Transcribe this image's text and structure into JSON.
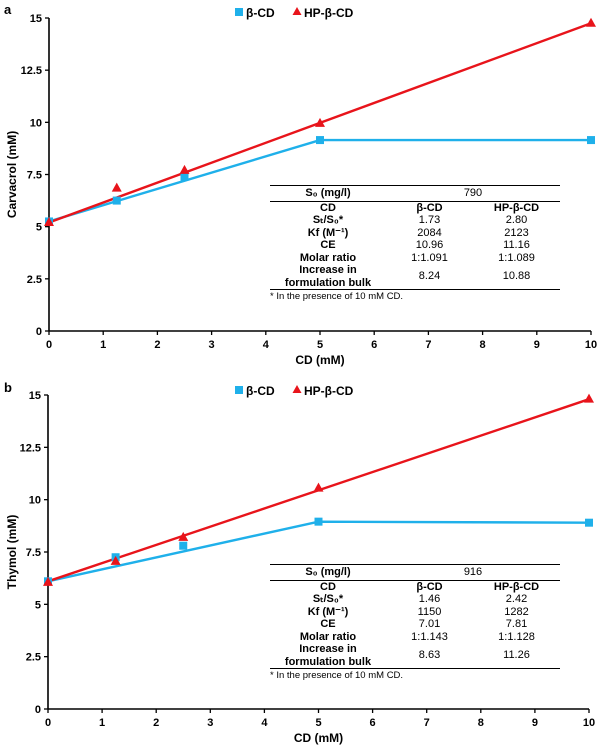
{
  "chart_data": [
    {
      "type": "line",
      "panel": "a",
      "title": "",
      "xlabel": "CD (mM)",
      "ylabel": "Carvacrol (mM)",
      "xlim": [
        0,
        10
      ],
      "ylim": [
        0,
        15
      ],
      "xticks": [
        "0",
        "1",
        "2",
        "3",
        "4",
        "5",
        "6",
        "7",
        "8",
        "9",
        "10"
      ],
      "yticks": [
        "0",
        "2.5",
        "5",
        "7.5",
        "10",
        "12.5",
        "15"
      ],
      "grid": false,
      "legend_position": "top-center",
      "series": [
        {
          "name": "β-CD",
          "marker": "square",
          "color": "#1fb0ea",
          "x": [
            0,
            1.25,
            2.5,
            5,
            10
          ],
          "y": [
            5.25,
            6.25,
            7.4,
            9.15,
            9.15
          ],
          "fit_line": [
            [
              0,
              5.25
            ],
            [
              5,
              9.15
            ],
            [
              10,
              9.15
            ]
          ]
        },
        {
          "name": "HP-β-CD",
          "marker": "triangle",
          "color": "#e8141b",
          "x": [
            0,
            1.25,
            2.5,
            5,
            10
          ],
          "y": [
            5.2,
            6.85,
            7.7,
            9.95,
            14.75
          ],
          "fit_line": [
            [
              0,
              5.2
            ],
            [
              10,
              14.75
            ]
          ]
        }
      ],
      "inset_table": {
        "s0_label": "S₀ (mg/l)",
        "s0_value": "790",
        "header": {
          "label": "CD",
          "c1": "β-CD",
          "c2": "HP-β-CD"
        },
        "rows": [
          {
            "label": "Sₜ/S₀*",
            "c1": "1.73",
            "c2": "2.80"
          },
          {
            "label": "Kf (M⁻¹)",
            "c1": "2084",
            "c2": "2123"
          },
          {
            "label": "CE",
            "c1": "10.96",
            "c2": "11.16"
          },
          {
            "label": "Molar ratio",
            "c1": "1:1.091",
            "c2": "1:1.089"
          },
          {
            "label": "Increase in formulation bulk",
            "c1": "8.24",
            "c2": "10.88"
          }
        ],
        "footnote": "* In the presence of 10 mM CD."
      }
    },
    {
      "type": "line",
      "panel": "b",
      "title": "",
      "xlabel": "CD (mM)",
      "ylabel": "Thymol (mM)",
      "xlim": [
        0,
        10
      ],
      "ylim": [
        0,
        15
      ],
      "xticks": [
        "0",
        "1",
        "2",
        "3",
        "4",
        "5",
        "6",
        "7",
        "8",
        "9",
        "10"
      ],
      "yticks": [
        "0",
        "2.5",
        "5",
        "7.5",
        "10",
        "12.5",
        "15"
      ],
      "grid": false,
      "legend_position": "top-center",
      "series": [
        {
          "name": "β-CD",
          "marker": "square",
          "color": "#1fb0ea",
          "x": [
            0,
            1.25,
            2.5,
            5,
            10
          ],
          "y": [
            6.1,
            7.25,
            7.8,
            8.95,
            8.9
          ],
          "fit_line": [
            [
              0,
              6.1
            ],
            [
              5,
              8.95
            ],
            [
              10,
              8.9
            ]
          ]
        },
        {
          "name": "HP-β-CD",
          "marker": "triangle",
          "color": "#e8141b",
          "x": [
            0,
            1.25,
            2.5,
            5,
            10
          ],
          "y": [
            6.05,
            7.05,
            8.2,
            10.55,
            14.8
          ],
          "fit_line": [
            [
              0,
              6.1
            ],
            [
              10,
              14.8
            ]
          ]
        }
      ],
      "inset_table": {
        "s0_label": "S₀ (mg/l)",
        "s0_value": "916",
        "header": {
          "label": "CD",
          "c1": "β-CD",
          "c2": "HP-β-CD"
        },
        "rows": [
          {
            "label": "Sₜ/S₀*",
            "c1": "1.46",
            "c2": "2.42"
          },
          {
            "label": "Kf (M⁻¹)",
            "c1": "1150",
            "c2": "1282"
          },
          {
            "label": "CE",
            "c1": "7.01",
            "c2": "7.81"
          },
          {
            "label": "Molar ratio",
            "c1": "1:1.143",
            "c2": "1:1.128"
          },
          {
            "label": "Increase in formulation bulk",
            "c1": "8.63",
            "c2": "11.26"
          }
        ],
        "footnote": "* In the presence of 10 mM CD."
      }
    }
  ]
}
